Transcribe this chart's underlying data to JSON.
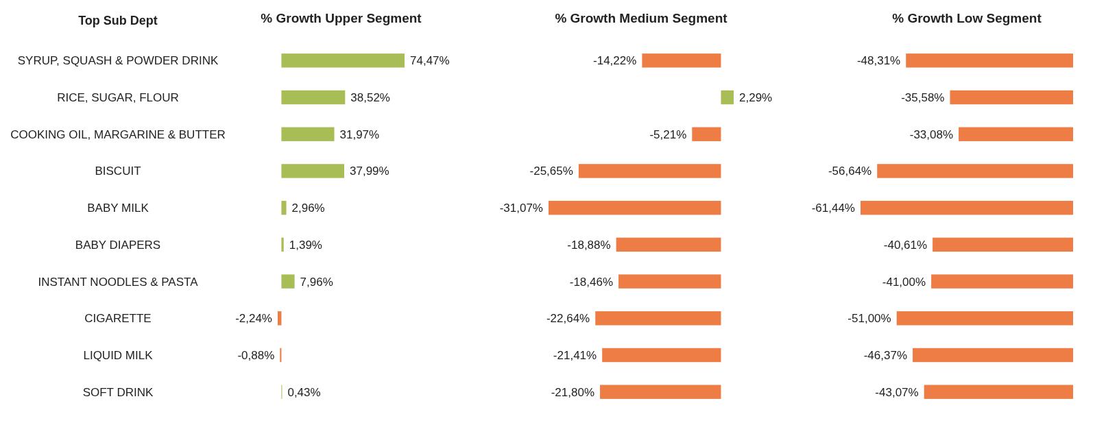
{
  "chart_data": [
    {
      "type": "bar",
      "orientation": "horizontal",
      "title": "% Growth Upper Segment",
      "ylabel": "Top Sub Dept",
      "categories": [
        "SYRUP, SQUASH & POWDER DRINK",
        "RICE, SUGAR, FLOUR",
        "COOKING OIL, MARGARINE & BUTTER",
        "BISCUIT",
        "BABY MILK",
        "BABY DIAPERS",
        "INSTANT NOODLES & PASTA",
        "CIGARETTE",
        "LIQUID MILK",
        "SOFT DRINK"
      ],
      "values": [
        74.47,
        38.52,
        31.97,
        37.99,
        2.96,
        1.39,
        7.96,
        -2.24,
        -0.88,
        0.43
      ],
      "colors": [
        "#a9bd57",
        "#a9bd57",
        "#a9bd57",
        "#a9bd57",
        "#a9bd57",
        "#a9bd57",
        "#a9bd57",
        "#ed7d45",
        "#ed7d45",
        "#a9bd57"
      ],
      "value_labels": [
        "74,47%",
        "38,52%",
        "31,97%",
        "37,99%",
        "2,96%",
        "1,39%",
        "7,96%",
        "-2,24%",
        "-0,88%",
        "0,43%"
      ]
    },
    {
      "type": "bar",
      "orientation": "horizontal",
      "title": "% Growth Medium Segment",
      "categories": [
        null,
        null,
        null,
        null,
        null,
        null,
        null,
        null,
        null,
        null
      ],
      "values": [
        -14.22,
        2.29,
        -5.21,
        -25.65,
        -31.07,
        -18.88,
        -18.46,
        -22.64,
        -21.41,
        -21.8
      ],
      "colors": [
        "#ed7d45",
        "#a9bd57",
        "#ed7d45",
        "#ed7d45",
        "#ed7d45",
        "#ed7d45",
        "#ed7d45",
        "#ed7d45",
        "#ed7d45",
        "#ed7d45"
      ],
      "value_labels": [
        "-14,22%",
        "2,29%",
        "-5,21%",
        "-25,65%",
        "-31,07%",
        "-18,88%",
        "-18,46%",
        "-22,64%",
        "-21,41%",
        "-21,80%"
      ]
    },
    {
      "type": "bar",
      "orientation": "horizontal",
      "title": "% Growth Low Segment",
      "categories": [
        null,
        null,
        null,
        null,
        null,
        null,
        null,
        null,
        null,
        null
      ],
      "values": [
        -48.31,
        -35.58,
        -33.08,
        -56.64,
        -61.44,
        -40.61,
        -41.0,
        -51.0,
        -46.37,
        -43.07
      ],
      "colors": [
        "#ed7d45",
        "#ed7d45",
        "#ed7d45",
        "#ed7d45",
        "#ed7d45",
        "#ed7d45",
        "#ed7d45",
        "#ed7d45",
        "#ed7d45",
        "#ed7d45"
      ],
      "value_labels": [
        "-48,31%",
        "-35,58%",
        "-33,08%",
        "-56,64%",
        "-61,44%",
        "-40,61%",
        "-41,00%",
        "-51,00%",
        "-46,37%",
        "-43,07%"
      ]
    }
  ]
}
